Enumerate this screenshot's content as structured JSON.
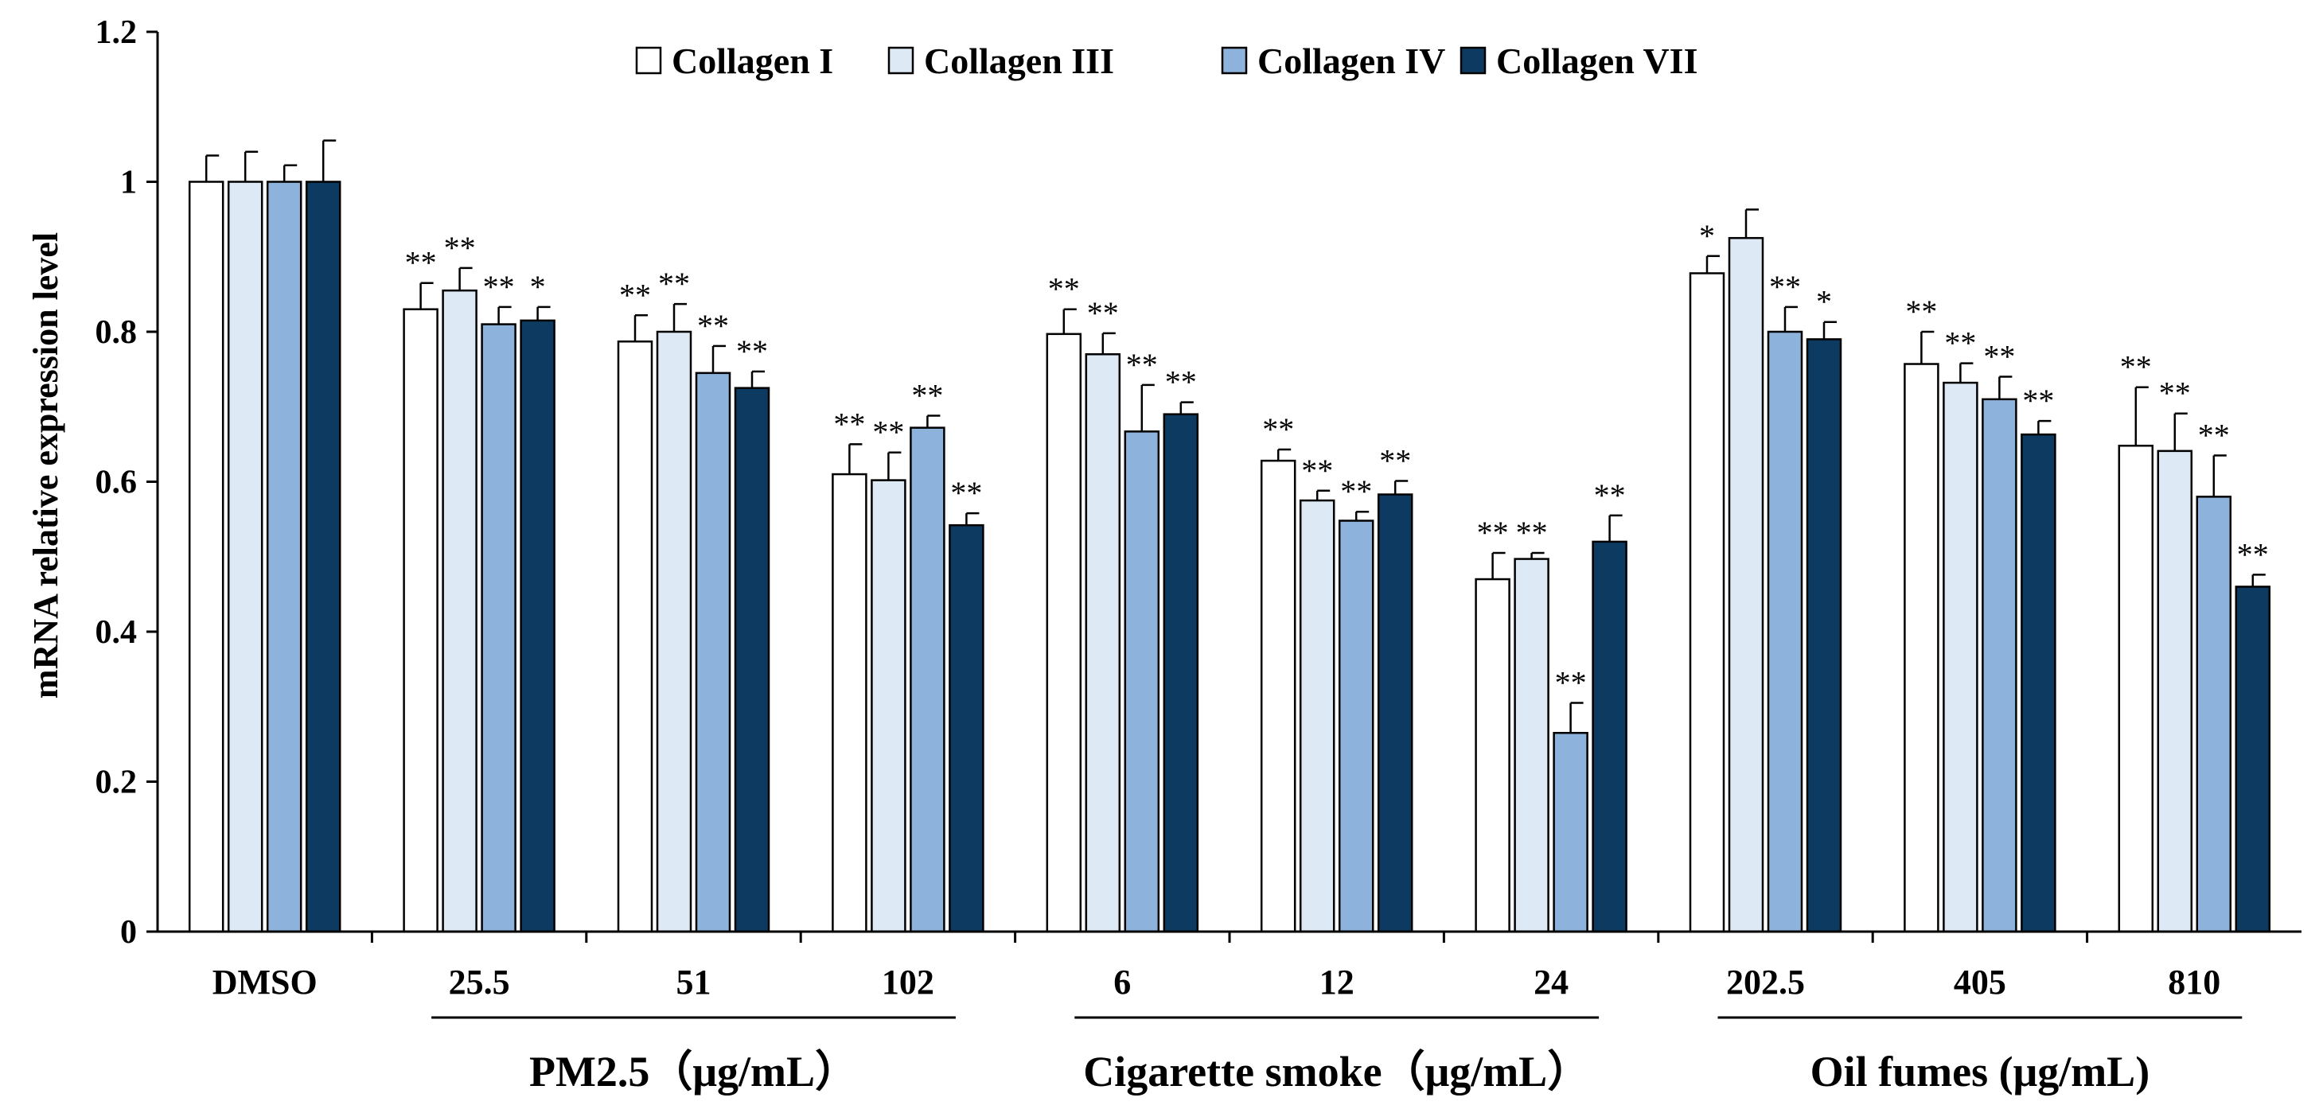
{
  "chart_data": {
    "type": "bar",
    "ylabel": "mRNA relative expression level",
    "ylim": [
      0,
      1.2
    ],
    "yticks": [
      "0",
      "0.2",
      "0.4",
      "0.6",
      "0.8",
      "1",
      "1.2"
    ],
    "categories": [
      "DMSO",
      "25.5",
      "51",
      "102",
      "6",
      "12",
      "24",
      "202.5",
      "405",
      "810"
    ],
    "groups": [
      {
        "label": "PM2.5（μg/mL）",
        "from": 1,
        "to": 3
      },
      {
        "label": "Cigarette smoke（μg/mL）",
        "from": 4,
        "to": 6
      },
      {
        "label": "Oil fumes (μg/mL)",
        "from": 7,
        "to": 9
      }
    ],
    "series": [
      {
        "name": "Collagen I",
        "color": "#ffffff",
        "values": [
          1.0,
          0.83,
          0.787,
          0.61,
          0.797,
          0.628,
          0.47,
          0.878,
          0.757,
          0.648
        ],
        "errors": [
          0.035,
          0.035,
          0.035,
          0.04,
          0.033,
          0.015,
          0.035,
          0.023,
          0.043,
          0.078
        ],
        "sig": [
          "",
          "**",
          "**",
          "**",
          "**",
          "**",
          "**",
          "*",
          "**",
          "**"
        ]
      },
      {
        "name": "Collagen III",
        "color": "#dde9f5",
        "values": [
          1.0,
          0.855,
          0.8,
          0.602,
          0.77,
          0.575,
          0.497,
          0.925,
          0.732,
          0.641
        ],
        "errors": [
          0.04,
          0.03,
          0.037,
          0.037,
          0.028,
          0.013,
          0.008,
          0.038,
          0.026,
          0.05
        ],
        "sig": [
          "",
          "**",
          "**",
          "**",
          "**",
          "**",
          "**",
          "",
          "**",
          "**"
        ]
      },
      {
        "name": "Collagen IV",
        "color": "#8db3dc",
        "values": [
          1.0,
          0.81,
          0.745,
          0.672,
          0.667,
          0.548,
          0.265,
          0.8,
          0.71,
          0.58
        ],
        "errors": [
          0.022,
          0.023,
          0.036,
          0.016,
          0.062,
          0.012,
          0.04,
          0.033,
          0.03,
          0.055
        ],
        "sig": [
          "",
          "**",
          "**",
          "**",
          "**",
          "**",
          "**",
          "**",
          "**",
          "**"
        ]
      },
      {
        "name": "Collagen VII",
        "color": "#0c3a60",
        "values": [
          1.0,
          0.815,
          0.725,
          0.542,
          0.69,
          0.583,
          0.52,
          0.79,
          0.663,
          0.46
        ],
        "errors": [
          0.055,
          0.018,
          0.022,
          0.016,
          0.016,
          0.018,
          0.035,
          0.023,
          0.018,
          0.016
        ],
        "sig": [
          "",
          "*",
          "**",
          "**",
          "**",
          "**",
          "**",
          "*",
          "**",
          "**"
        ]
      }
    ]
  }
}
